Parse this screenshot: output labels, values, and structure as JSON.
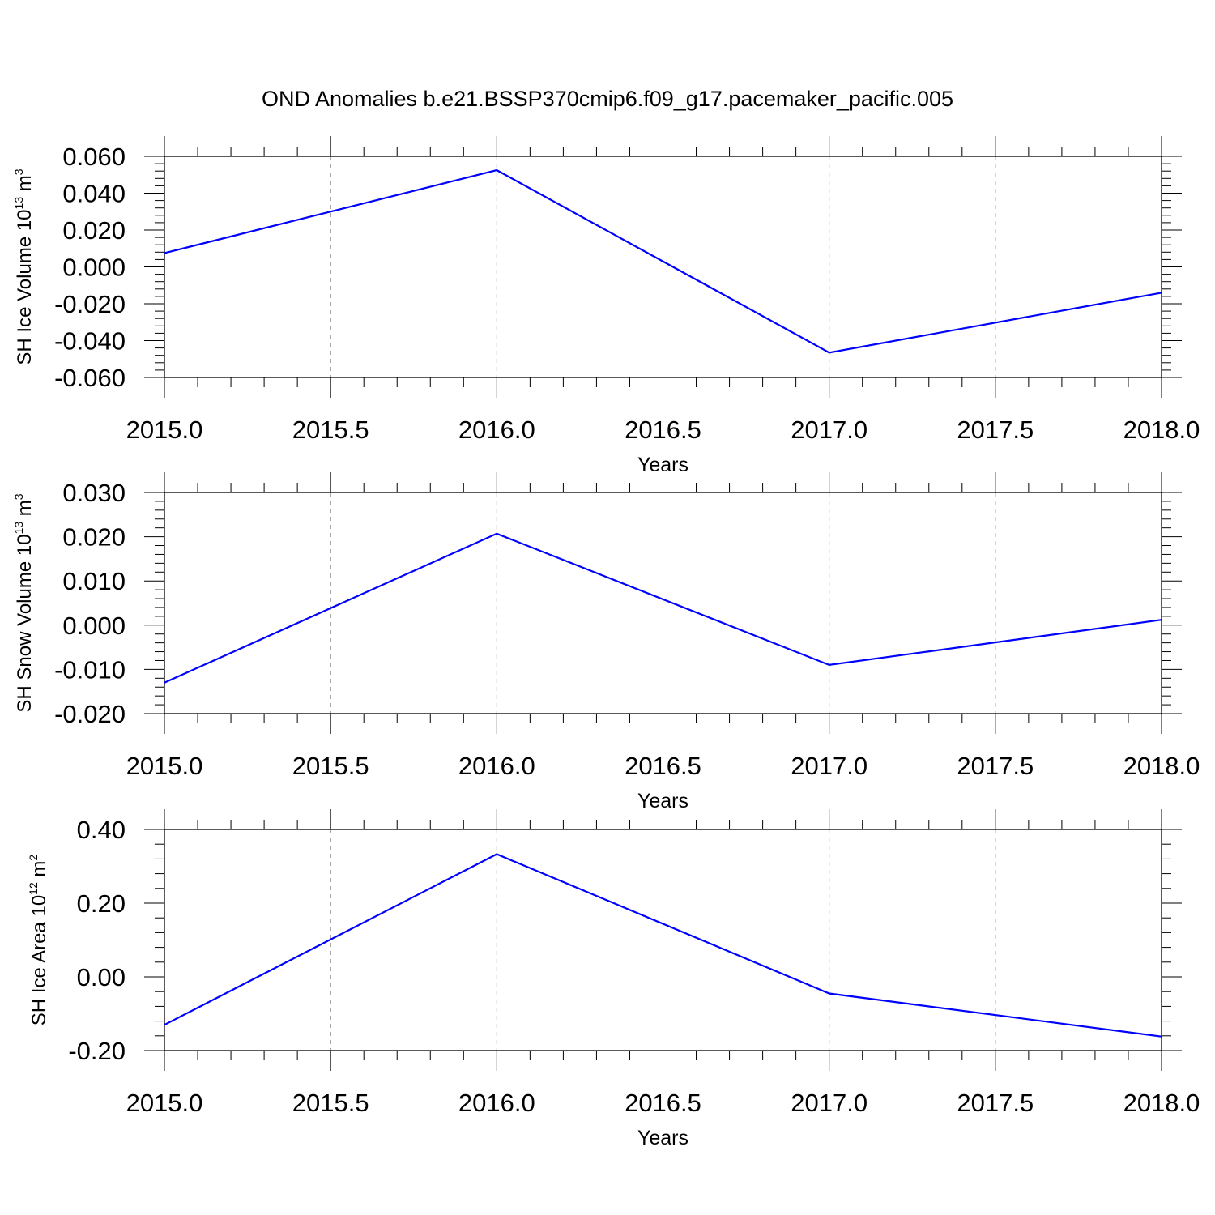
{
  "title": "OND Anomalies b.e21.BSSP370cmip6.f09_g17.pacemaker_pacific.005",
  "colors": {
    "line": "#0000ff",
    "axis": "#000000",
    "grid": "#808080"
  },
  "chart_data": [
    {
      "type": "line",
      "xlabel": "Years",
      "ylabel": {
        "text": "SH Ice Volume 10",
        "exp": "13",
        "unit": " m",
        "unit_exp": "3"
      },
      "xlim": [
        2015.0,
        2018.0
      ],
      "ylim": [
        -0.06,
        0.06
      ],
      "xticks": [
        "2015.0",
        "2015.5",
        "2016.0",
        "2016.5",
        "2017.0",
        "2017.5",
        "2018.0"
      ],
      "yticks": [
        "0.060",
        "0.040",
        "0.020",
        "0.000",
        "-0.020",
        "-0.040",
        "-0.060"
      ],
      "x": [
        2015.0,
        2016.0,
        2017.0,
        2018.0
      ],
      "y": [
        0.0075,
        0.0525,
        -0.0465,
        -0.014
      ],
      "grid": "vertical dashed"
    },
    {
      "type": "line",
      "xlabel": "Years",
      "ylabel": {
        "text": "SH Snow Volume 10",
        "exp": "13",
        "unit": " m",
        "unit_exp": "3"
      },
      "xlim": [
        2015.0,
        2018.0
      ],
      "ylim": [
        -0.02,
        0.03
      ],
      "xticks": [
        "2015.0",
        "2015.5",
        "2016.0",
        "2016.5",
        "2017.0",
        "2017.5",
        "2018.0"
      ],
      "yticks": [
        "0.030",
        "0.020",
        "0.010",
        "0.000",
        "-0.010",
        "-0.020"
      ],
      "x": [
        2015.0,
        2016.0,
        2017.0,
        2018.0
      ],
      "y": [
        -0.013,
        0.0207,
        -0.009,
        0.0012
      ],
      "grid": "vertical dashed"
    },
    {
      "type": "line",
      "xlabel": "Years",
      "ylabel": {
        "text": "SH Ice Area 10",
        "exp": "12",
        "unit": " m",
        "unit_exp": "2"
      },
      "xlim": [
        2015.0,
        2018.0
      ],
      "ylim": [
        -0.2,
        0.4
      ],
      "xticks": [
        "2015.0",
        "2015.5",
        "2016.0",
        "2016.5",
        "2017.0",
        "2017.5",
        "2018.0"
      ],
      "yticks": [
        "0.40",
        "0.20",
        "0.00",
        "-0.20"
      ],
      "x": [
        2015.0,
        2016.0,
        2017.0,
        2018.0
      ],
      "y": [
        -0.13,
        0.333,
        -0.045,
        -0.162
      ],
      "grid": "vertical dashed"
    }
  ]
}
